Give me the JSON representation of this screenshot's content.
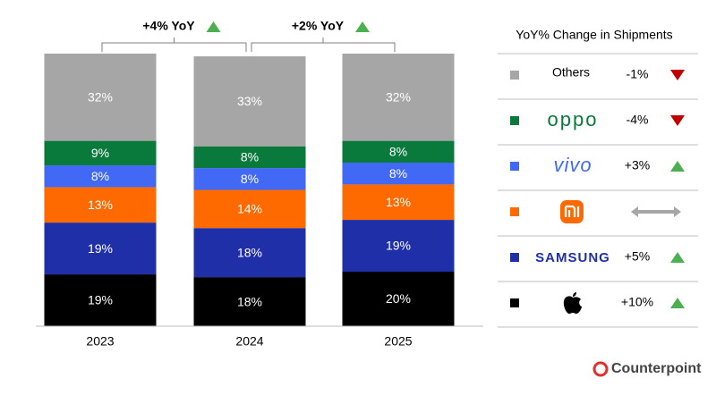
{
  "chart_data": {
    "type": "bar",
    "stacked": true,
    "categories": [
      "2023",
      "2024",
      "2025"
    ],
    "ylim": [
      0,
      100
    ],
    "series": [
      {
        "color": "#000000",
        "values": [
          19,
          18,
          20
        ],
        "value_labels": [
          "19%",
          "18%",
          "20%"
        ],
        "yoy": "+10%",
        "trend": "up"
      },
      {
        "name": "SAMSUNG",
        "color": "#1f2fa8",
        "values": [
          19,
          18,
          19
        ],
        "value_labels": [
          "19%",
          "18%",
          "19%"
        ],
        "yoy": "+5%",
        "trend": "up"
      },
      {
        "color": "#ff6a00",
        "values": [
          13,
          14,
          13
        ],
        "value_labels": [
          "13%",
          "14%",
          "13%"
        ],
        "trend": "flat"
      },
      {
        "name": "vivo",
        "color": "#4169f5",
        "values": [
          8,
          8,
          8
        ],
        "value_labels": [
          "8%",
          "8%",
          "8%"
        ],
        "yoy": "+3%",
        "trend": "up"
      },
      {
        "name": "oppo",
        "color": "#0a7a3c",
        "values": [
          9,
          8,
          8
        ],
        "value_labels": [
          "9%",
          "8%",
          "8%"
        ],
        "yoy": "-4%",
        "trend": "down"
      },
      {
        "name": "Others",
        "color": "#a6a6a6",
        "values": [
          32,
          33,
          32
        ],
        "value_labels": [
          "32%",
          "33%",
          "32%"
        ],
        "yoy": "-1%",
        "trend": "down"
      }
    ],
    "legend_title": "YoY% Change in Shipments",
    "annotations": [
      {
        "text": "+4% YoY",
        "trend": "up"
      },
      {
        "text": "+2% YoY",
        "trend": "up"
      }
    ],
    "source": "Counterpoint"
  }
}
